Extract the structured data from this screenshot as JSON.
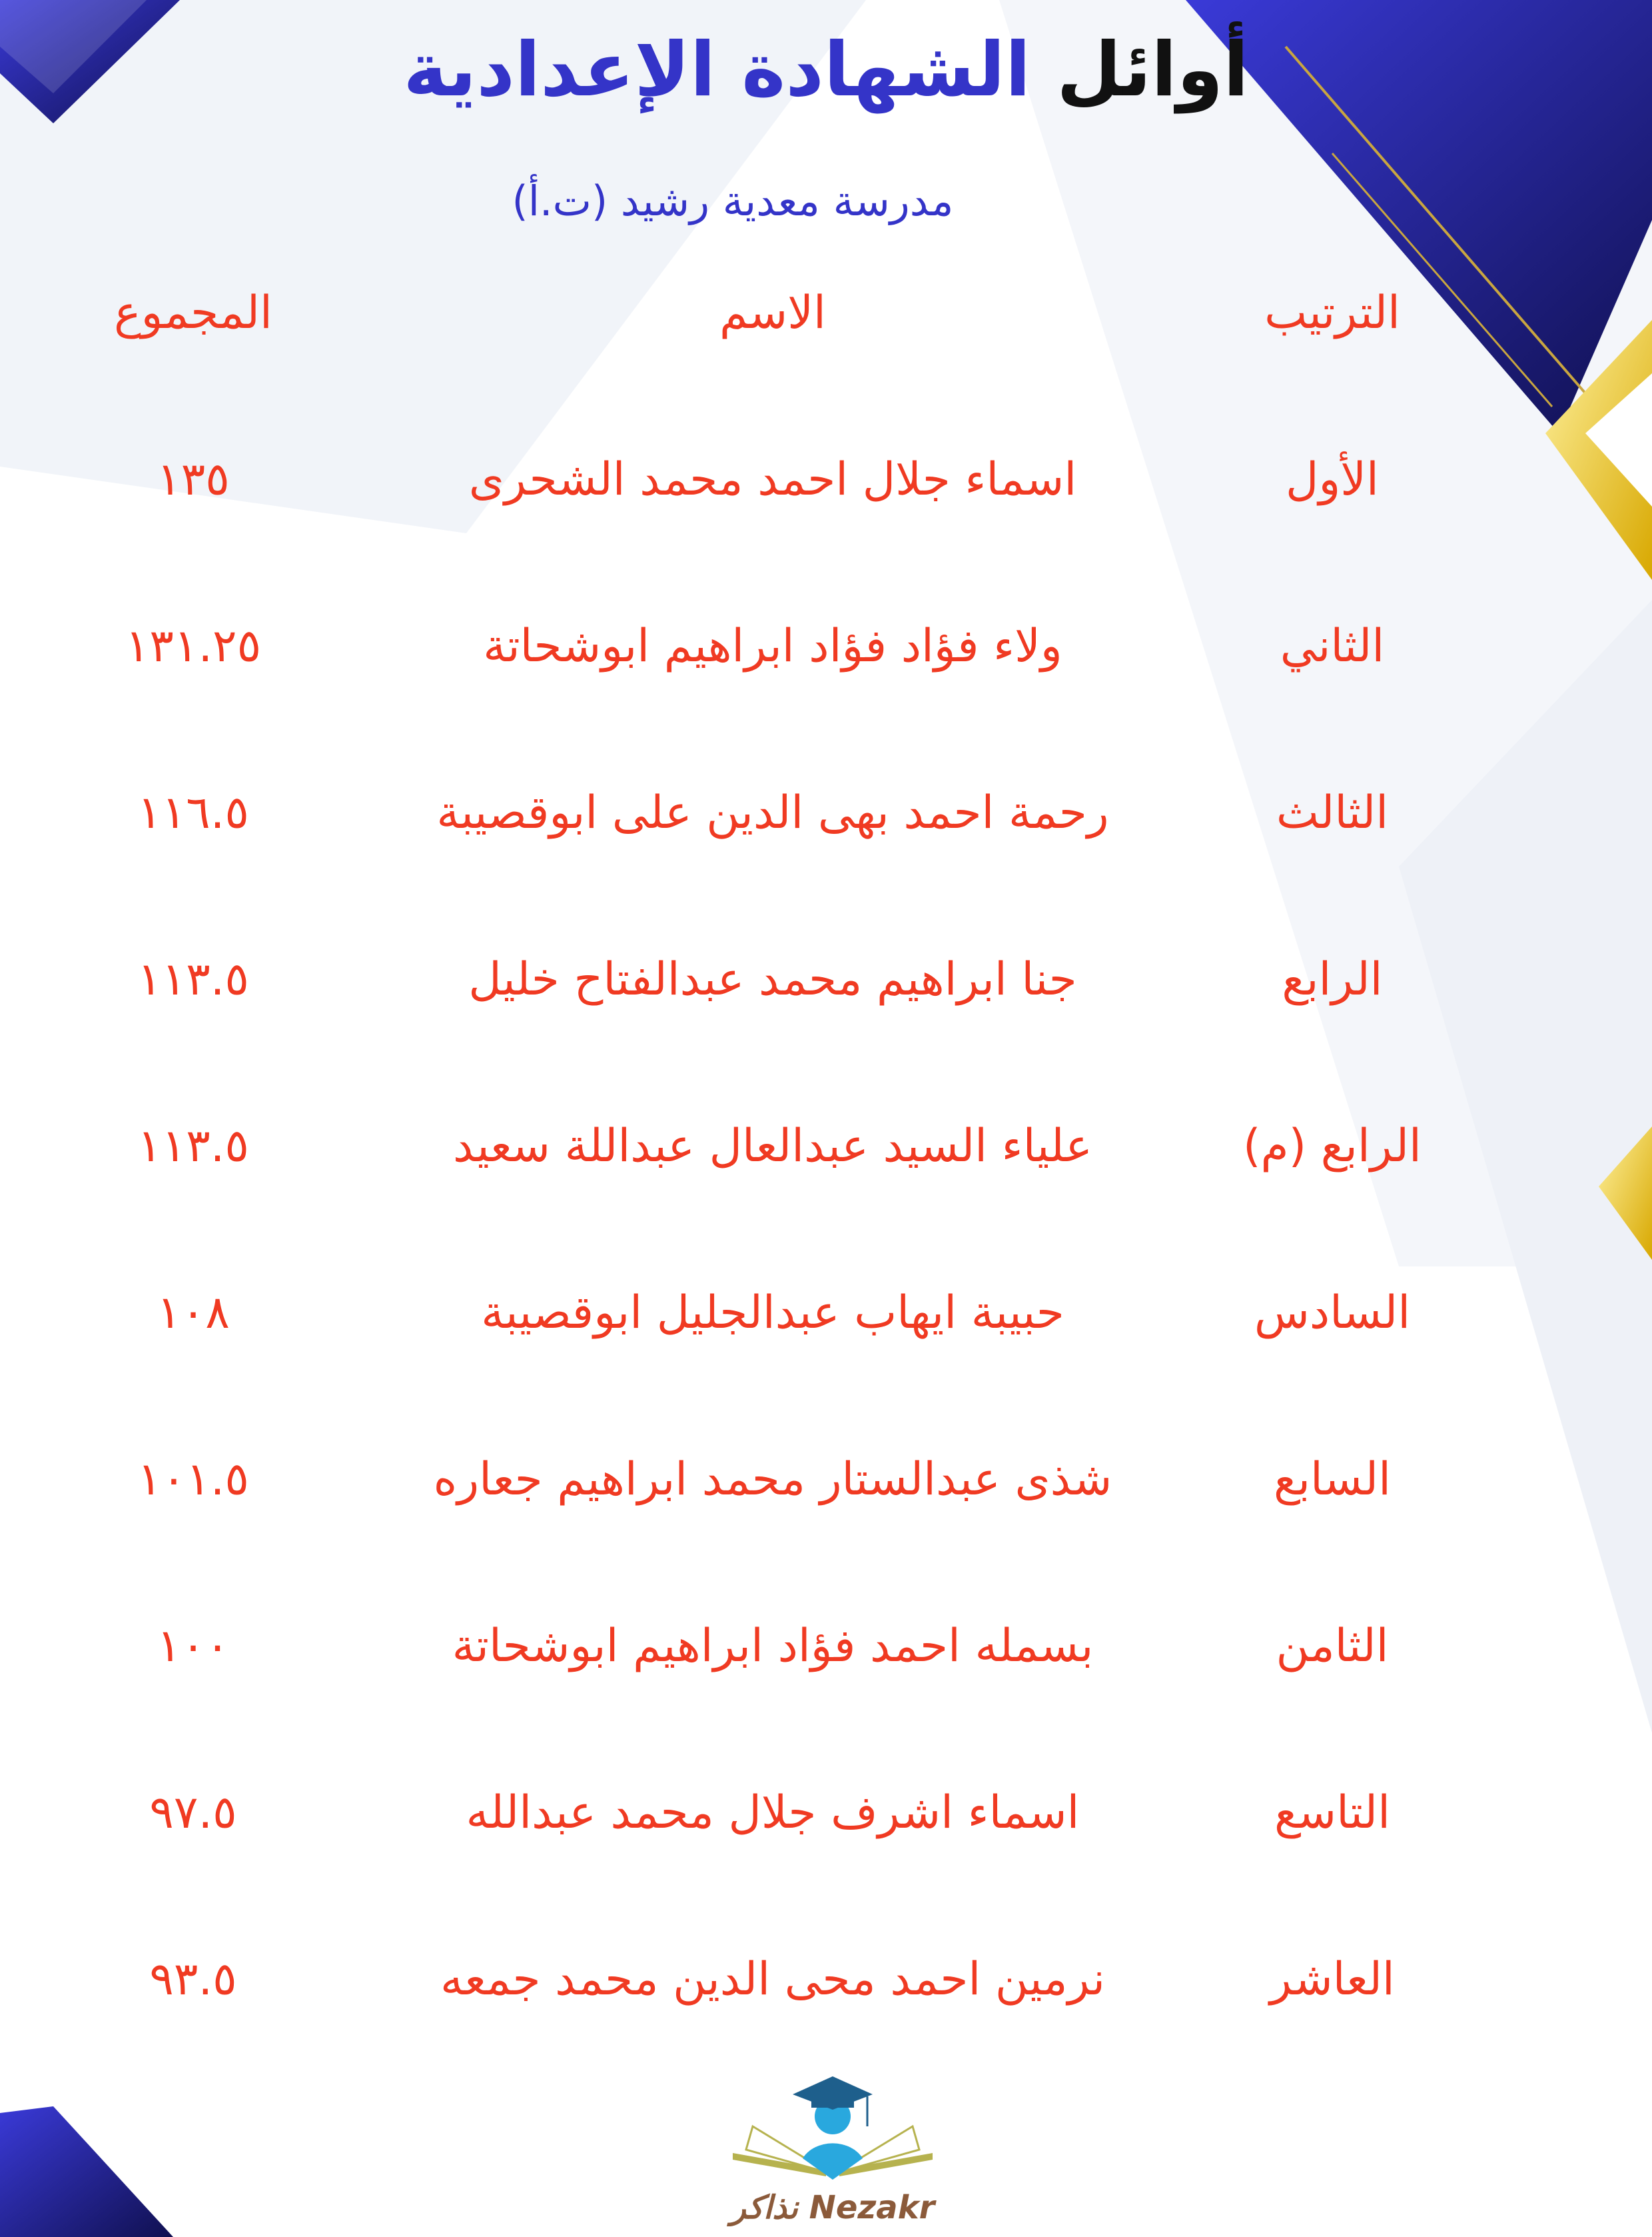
{
  "header": {
    "title_part1": "أوائل",
    "title_part2": "الشهادة الإعدادية",
    "subtitle": "مدرسة معدية رشيد (ت.أ)"
  },
  "table": {
    "columns": [
      "الترتيب",
      "الاسم",
      "المجموع"
    ],
    "rows": [
      {
        "rank": "الأول",
        "name": "اسماء جلال احمد محمد الشحرى",
        "total": "١٣٥"
      },
      {
        "rank": "الثاني",
        "name": "ولاء فؤاد فؤاد ابراهيم ابوشحاتة",
        "total": "١٣١.٢٥"
      },
      {
        "rank": "الثالث",
        "name": "رحمة احمد بهى الدين على ابوقصيبة",
        "total": "١١٦.٥"
      },
      {
        "rank": "الرابع",
        "name": "جنا ابراهيم محمد عبدالفتاح خليل",
        "total": "١١٣.٥"
      },
      {
        "rank": "الرابع (م)",
        "name": "علياء السيد عبدالعال عبداللة سعيد",
        "total": "١١٣.٥"
      },
      {
        "rank": "السادس",
        "name": "حبيبة ايهاب عبدالجليل ابوقصيبة",
        "total": "١٠٨"
      },
      {
        "rank": "السابع",
        "name": "شذى عبدالستار محمد ابراهيم جعاره",
        "total": "١٠١.٥"
      },
      {
        "rank": "الثامن",
        "name": "بسمله احمد فؤاد ابراهيم ابوشحاتة",
        "total": "١٠٠"
      },
      {
        "rank": "التاسع",
        "name": "اسماء اشرف جلال محمد عبدالله",
        "total": "٩٧.٥"
      },
      {
        "rank": "العاشر",
        "name": "نرمين احمد محى الدين محمد جمعه",
        "total": "٩٣.٥"
      }
    ]
  },
  "logo": {
    "text_en": "Nezakr",
    "text_ar": "نذاكر"
  },
  "colors": {
    "title_dark": "#111111",
    "accent_blue": "#3434c8",
    "text_red": "#f03a22",
    "navy": "#1a1a70",
    "gold": "#e8c020"
  }
}
